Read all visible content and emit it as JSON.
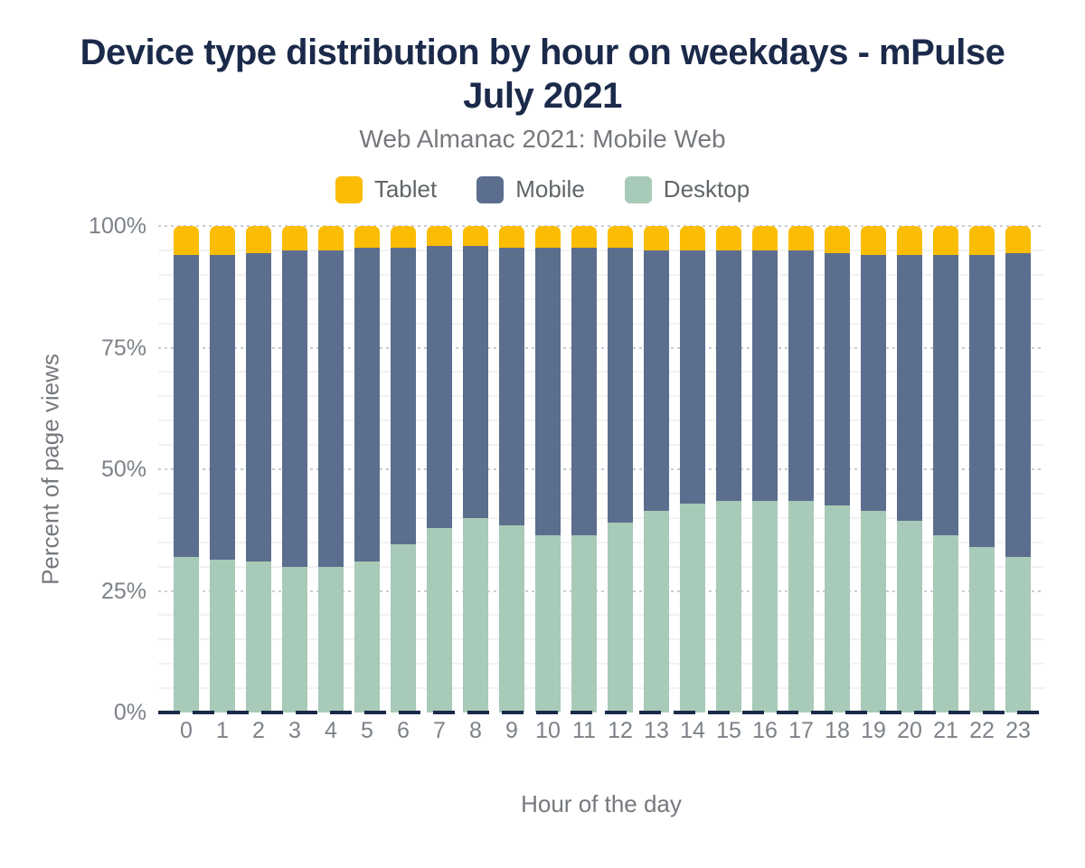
{
  "header": {
    "title": "Device type distribution by hour on weekdays - mPulse July 2021",
    "subtitle": "Web Almanac 2021: Mobile Web"
  },
  "colors": {
    "title_navy": "#1b2a4a",
    "axis_gray": "#7c8288",
    "tablet_yellow": "#fbbc04",
    "mobile_slate": "#5c6e8e",
    "desktop_green": "#a8cab8",
    "zero_line_navy": "#1b2a4a"
  },
  "chart_data": {
    "type": "bar",
    "stacked": true,
    "stack_mode": "percent",
    "title": "Device type distribution by hour on weekdays - mPulse July 2021",
    "subtitle": "Web Almanac 2021: Mobile Web",
    "xlabel": "Hour of the day",
    "ylabel": "Percent of page views",
    "categories": [
      "0",
      "1",
      "2",
      "3",
      "4",
      "5",
      "6",
      "7",
      "8",
      "9",
      "10",
      "11",
      "12",
      "13",
      "14",
      "15",
      "16",
      "17",
      "18",
      "19",
      "20",
      "21",
      "22",
      "23"
    ],
    "y_ticks": [
      {
        "value": 0,
        "label": "0%"
      },
      {
        "value": 25,
        "label": "25%"
      },
      {
        "value": 50,
        "label": "50%"
      },
      {
        "value": 75,
        "label": "75%"
      },
      {
        "value": 100,
        "label": "100%"
      }
    ],
    "ylim": [
      0,
      100
    ],
    "grid": {
      "minor_step": 5,
      "major_step": 25,
      "minor_style": "solid-faint",
      "major_style": "dotted"
    },
    "legend": {
      "position": "top",
      "entries": [
        "Tablet",
        "Mobile",
        "Desktop"
      ]
    },
    "series": [
      {
        "name": "Desktop",
        "color": "#a8cab8",
        "values": [
          32,
          31.5,
          31,
          30,
          30,
          31,
          34.5,
          38,
          40,
          38.5,
          36.5,
          36.5,
          39,
          41.5,
          43,
          43.5,
          43.5,
          43.5,
          42.5,
          41.5,
          39.5,
          36.5,
          34,
          32
        ]
      },
      {
        "name": "Mobile",
        "color": "#5c6e8e",
        "values": [
          62,
          62.5,
          63.5,
          65,
          65,
          64.5,
          61,
          58,
          56,
          57,
          59,
          59,
          56.5,
          53.5,
          52,
          51.5,
          51.5,
          51.5,
          52,
          52.5,
          54.5,
          57.5,
          60,
          62.5
        ]
      },
      {
        "name": "Tablet",
        "color": "#fbbc04",
        "values": [
          6,
          6,
          5.5,
          5,
          5,
          4.5,
          4.5,
          4,
          4,
          4.5,
          4.5,
          4.5,
          4.5,
          5,
          5,
          5,
          5,
          5,
          5.5,
          6,
          6,
          6,
          6,
          5.5
        ]
      }
    ]
  }
}
